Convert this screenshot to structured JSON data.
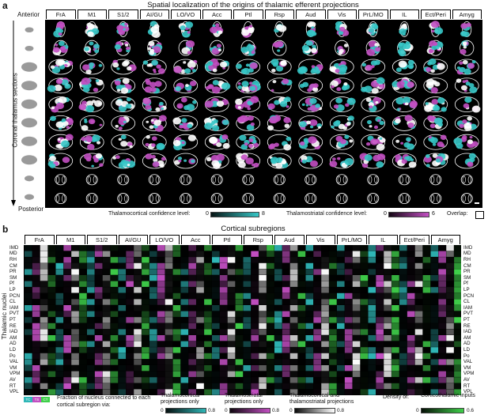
{
  "panel_a": {
    "letter": "a",
    "title": "Spatial localization of the origins of thalamic efferent projections",
    "columns": [
      "FrA",
      "M1",
      "S1/2",
      "AI/GU",
      "LO/VO",
      "Acc",
      "Ptl",
      "Rsp",
      "Aud",
      "Vis",
      "PrL/MO",
      "IL",
      "Ect/Peri",
      "Amyg"
    ],
    "side_label": "Coronal thalamus sections",
    "anterior_label": "Anterior",
    "posterior_label": "Posterior",
    "legend": {
      "tc_label": "Thalamocortical confidence level:",
      "tc_min": "0",
      "tc_max": "8",
      "ts_label": "Thalamostriatal confidence level:",
      "ts_min": "0",
      "ts_max": "6",
      "overlap_label": "Overlap:"
    },
    "colors": {
      "thalamocortical": "#36c6c6",
      "thalamostriatal": "#c24fc2",
      "overlap": "#ffffff"
    }
  },
  "panel_b": {
    "letter": "b",
    "title": "Cortical subregions",
    "columns": [
      "FrA",
      "M1",
      "S1/2",
      "AI/GU",
      "LO/VO",
      "Acc",
      "Ptl",
      "Rsp",
      "Aud",
      "Vis",
      "PrL/MO",
      "IL",
      "Ect/Peri",
      "Amyg"
    ],
    "y_label": "Thalamic nuclei",
    "nuclei": [
      "IMD",
      "MD",
      "RH",
      "CM",
      "PR",
      "SM",
      "Pf",
      "LP",
      "PCN",
      "CL",
      "IAM",
      "PVT",
      "PT",
      "RE",
      "IAD",
      "AM",
      "AD",
      "LD",
      "Po",
      "VAL",
      "VM",
      "VPM",
      "AV",
      "RT",
      "VPL"
    ],
    "legend": {
      "fraction_label": "Fraction of nucleus connected to each cortical subregion via:",
      "key_tc": "TC",
      "key_ts": "TS",
      "key_ct": "CT",
      "tc_label": "Thalamocortical projections only",
      "tc_min": "0",
      "tc_max": "0.8",
      "ts_label": "Thalamostriatal projections only",
      "ts_min": "0",
      "ts_max": "0.8",
      "both_label": "Thalamocortical and thalamostriatal projections",
      "both_min": "0",
      "both_max": "0.8",
      "density_label": "Density of:",
      "ct_label": "Corticothalamic inputs",
      "ct_min": "0",
      "ct_max": "0.6"
    },
    "colors": {
      "tc": "#2fb7b7",
      "ts": "#c24fc2",
      "both": "#ffffff",
      "ct": "#3fd04a"
    }
  }
}
